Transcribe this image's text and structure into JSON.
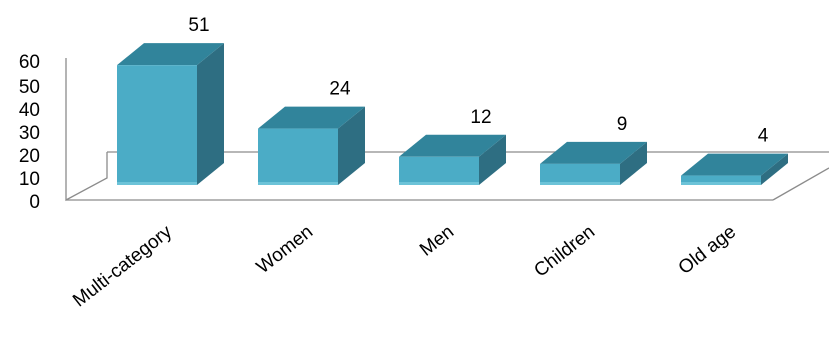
{
  "chart_data": {
    "type": "bar",
    "style": "3d-column",
    "categories": [
      "Multi-category",
      "Women",
      "Men",
      "Children",
      "Old age"
    ],
    "values": [
      51,
      24,
      12,
      9,
      4
    ],
    "ylim": [
      0,
      60
    ],
    "yticks": [
      0,
      10,
      20,
      30,
      40,
      50,
      60
    ],
    "title": "",
    "xlabel": "",
    "ylabel": "",
    "grid": false,
    "legend": "none",
    "data_labels": true,
    "colors": {
      "front": "#4BACC6",
      "top": "#31849B",
      "side": "#2E6E82",
      "axis": "#8C8C8C"
    }
  }
}
